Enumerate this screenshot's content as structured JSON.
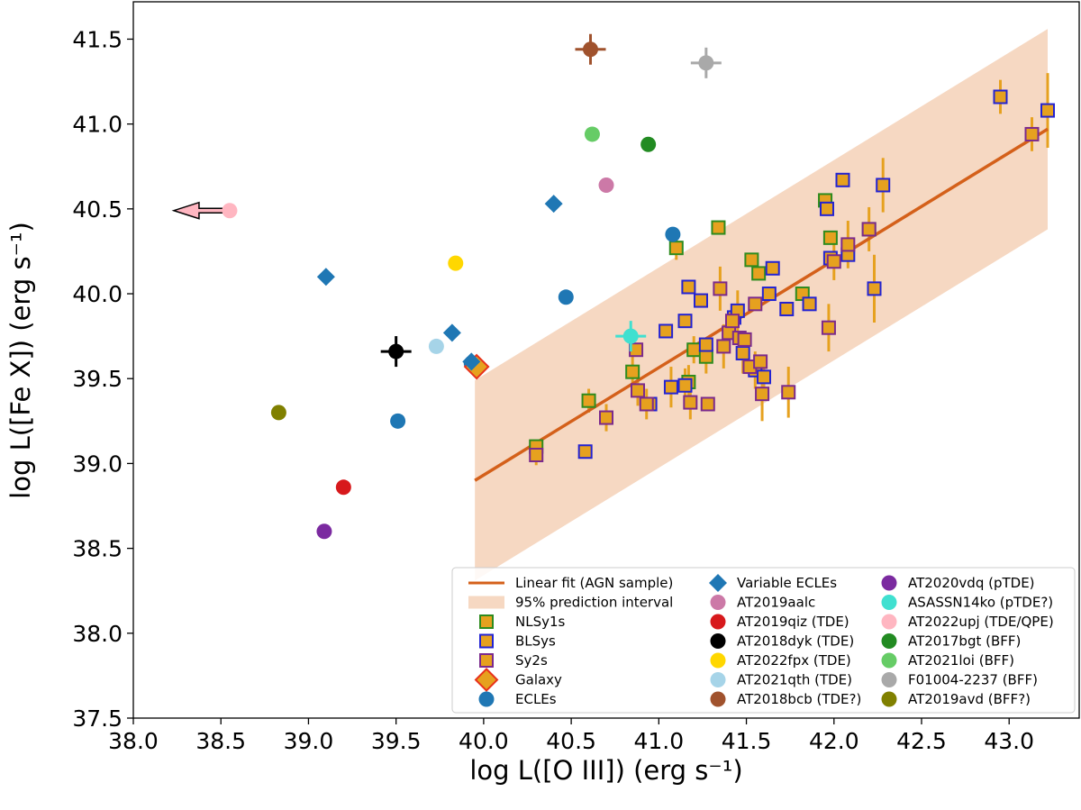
{
  "chart_data": {
    "type": "scatter",
    "xlabel": "log L([O III]) (erg s⁻¹)",
    "ylabel": "log L([Fe X]) (erg s⁻¹)",
    "xlim": [
      38.0,
      43.4
    ],
    "ylim": [
      37.5,
      41.72
    ],
    "x_ticks": [
      "38.0",
      "38.5",
      "39.0",
      "39.5",
      "40.0",
      "40.5",
      "41.0",
      "41.5",
      "42.0",
      "42.5",
      "43.0"
    ],
    "y_ticks": [
      "37.5",
      "38.0",
      "38.5",
      "39.0",
      "39.5",
      "40.0",
      "40.5",
      "41.0",
      "41.5"
    ],
    "grid": false,
    "legend_position": "lower-right",
    "colors": {
      "fit_line": "#d4601a",
      "band": "#f6d8c2",
      "sample_fill": "#e6a11f",
      "nlsy1_edge": "#2e8b1e",
      "blsy_edge": "#2323d2",
      "sy2_edge": "#7b2a8c",
      "galaxy_edge": "#e8321c",
      "ecle": "#1f77b4",
      "errorbar": "#e6a11f"
    },
    "fit": {
      "label": "Linear fit (AGN sample)",
      "x": [
        39.95,
        43.22
      ],
      "y": [
        38.9,
        40.97
      ],
      "band_label": "95% prediction interval",
      "band_lower": [
        38.31,
        40.38
      ],
      "band_upper": [
        39.49,
        41.56
      ]
    },
    "samples": [
      {
        "name": "NLSy1s",
        "marker": "square",
        "edge": "#2e8b1e",
        "points": [
          [
            40.3,
            39.1
          ],
          [
            40.6,
            39.37
          ],
          [
            40.85,
            39.54
          ],
          [
            41.1,
            40.27
          ],
          [
            41.17,
            39.48
          ],
          [
            41.2,
            39.67
          ],
          [
            41.27,
            39.63
          ],
          [
            41.34,
            40.39
          ],
          [
            41.53,
            40.2
          ],
          [
            41.57,
            40.12
          ],
          [
            41.82,
            40.0
          ],
          [
            41.95,
            40.55
          ],
          [
            41.98,
            40.33
          ],
          [
            42.2,
            40.38
          ]
        ]
      },
      {
        "name": "BLSys",
        "marker": "square",
        "edge": "#2323d2",
        "points": [
          [
            40.58,
            39.07
          ],
          [
            40.95,
            39.35
          ],
          [
            41.04,
            39.78
          ],
          [
            41.07,
            39.45
          ],
          [
            41.15,
            39.84
          ],
          [
            41.15,
            39.46
          ],
          [
            41.17,
            40.04
          ],
          [
            41.24,
            39.96
          ],
          [
            41.27,
            39.7
          ],
          [
            41.43,
            39.86
          ],
          [
            41.45,
            39.9
          ],
          [
            41.48,
            39.65
          ],
          [
            41.55,
            39.55
          ],
          [
            41.6,
            39.51
          ],
          [
            41.63,
            40.0
          ],
          [
            41.65,
            40.15
          ],
          [
            41.73,
            39.91
          ],
          [
            41.86,
            39.94
          ],
          [
            41.96,
            40.5
          ],
          [
            41.98,
            40.21
          ],
          [
            42.05,
            40.67
          ],
          [
            42.08,
            40.23
          ],
          [
            42.23,
            40.03
          ],
          [
            42.28,
            40.64
          ],
          [
            42.95,
            41.16
          ],
          [
            43.22,
            41.08
          ]
        ]
      },
      {
        "name": "Sy2s",
        "marker": "square",
        "edge": "#7b2a8c",
        "points": [
          [
            40.3,
            39.05
          ],
          [
            40.7,
            39.27
          ],
          [
            40.87,
            39.67
          ],
          [
            40.88,
            39.43
          ],
          [
            40.93,
            39.35
          ],
          [
            41.18,
            39.36
          ],
          [
            41.28,
            39.35
          ],
          [
            41.35,
            40.03
          ],
          [
            41.37,
            39.69
          ],
          [
            41.4,
            39.77
          ],
          [
            41.42,
            39.84
          ],
          [
            41.46,
            39.74
          ],
          [
            41.49,
            39.73
          ],
          [
            41.52,
            39.57
          ],
          [
            41.55,
            39.94
          ],
          [
            41.58,
            39.6
          ],
          [
            41.59,
            39.41
          ],
          [
            41.74,
            39.42
          ],
          [
            41.97,
            39.8
          ],
          [
            42.0,
            40.19
          ],
          [
            42.08,
            40.29
          ],
          [
            42.2,
            40.38
          ],
          [
            43.13,
            40.94
          ]
        ]
      }
    ],
    "error_bars": [
      [
        40.3,
        38.99,
        39.11
      ],
      [
        40.6,
        39.3,
        39.44
      ],
      [
        40.7,
        39.19,
        39.35
      ],
      [
        40.85,
        39.45,
        39.63
      ],
      [
        40.88,
        39.34,
        39.52
      ],
      [
        40.93,
        39.26,
        39.44
      ],
      [
        41.07,
        39.33,
        39.57
      ],
      [
        41.1,
        40.2,
        40.34
      ],
      [
        41.15,
        39.36,
        39.56
      ],
      [
        41.17,
        39.38,
        39.58
      ],
      [
        41.18,
        39.26,
        39.46
      ],
      [
        41.2,
        39.59,
        39.75
      ],
      [
        41.27,
        39.53,
        39.73
      ],
      [
        41.35,
        39.9,
        40.16
      ],
      [
        41.37,
        39.56,
        39.82
      ],
      [
        41.45,
        39.78,
        40.02
      ],
      [
        41.48,
        39.53,
        39.77
      ],
      [
        41.55,
        39.44,
        39.66
      ],
      [
        41.59,
        39.25,
        39.57
      ],
      [
        41.6,
        39.4,
        39.62
      ],
      [
        41.74,
        39.27,
        39.57
      ],
      [
        41.97,
        39.66,
        39.94
      ],
      [
        42.0,
        40.08,
        40.3
      ],
      [
        42.08,
        40.15,
        40.43
      ],
      [
        42.2,
        40.25,
        40.51
      ],
      [
        42.23,
        39.83,
        40.23
      ],
      [
        42.28,
        40.48,
        40.8
      ],
      [
        42.95,
        41.06,
        41.26
      ],
      [
        43.13,
        40.84,
        41.04
      ],
      [
        43.22,
        40.86,
        41.3
      ]
    ],
    "galaxy": {
      "name": "Galaxy",
      "x": 39.96,
      "y": 39.57
    },
    "ecles": {
      "name": "ECLEs",
      "color": "#1f77b4",
      "points": [
        [
          39.51,
          39.25
        ],
        [
          40.47,
          39.98
        ],
        [
          41.08,
          40.35
        ],
        [
          39.93,
          39.59
        ]
      ]
    },
    "variable_ecles": {
      "name": "Variable ECLEs",
      "color": "#1f77b4",
      "points": [
        [
          39.1,
          40.1
        ],
        [
          39.82,
          39.77
        ],
        [
          40.4,
          40.53
        ],
        [
          39.93,
          39.6
        ]
      ]
    },
    "objects": [
      {
        "name": "AT2019aalc",
        "color": "#cc79a7",
        "x": 40.7,
        "y": 40.64
      },
      {
        "name": "AT2019qiz (TDE)",
        "color": "#d7191c",
        "x": 39.2,
        "y": 38.86
      },
      {
        "name": "AT2018dyk (TDE)",
        "color": "#000000",
        "x": 39.5,
        "y": 39.66,
        "errorbar": true
      },
      {
        "name": "AT2022fpx (TDE)",
        "color": "#ffd700",
        "x": 39.84,
        "y": 40.18
      },
      {
        "name": "AT2021qth (TDE)",
        "color": "#a6d4e8",
        "x": 39.73,
        "y": 39.69
      },
      {
        "name": "AT2018bcb (TDE?)",
        "color": "#a0522d",
        "x": 40.61,
        "y": 41.44,
        "errorbar": true
      },
      {
        "name": "AT2020vdq (pTDE)",
        "color": "#7b2aa0",
        "x": 39.09,
        "y": 38.6
      },
      {
        "name": "ASASSN14ko (pTDE?)",
        "color": "#40e0d0",
        "x": 40.84,
        "y": 39.75,
        "errorbar": true
      },
      {
        "name": "AT2022upj (TDE/QPE)",
        "color": "#ffb6c1",
        "x": 38.55,
        "y": 40.49,
        "upper_limit_arrow": true
      },
      {
        "name": "AT2017bgt (BFF)",
        "color": "#228b22",
        "x": 40.94,
        "y": 40.88
      },
      {
        "name": "AT2021loi (BFF)",
        "color": "#66cc66",
        "x": 40.62,
        "y": 40.94
      },
      {
        "name": "F01004-2237 (BFF)",
        "color": "#a9a9a9",
        "x": 41.27,
        "y": 41.36,
        "errorbar": true
      },
      {
        "name": "AT2019avd (BFF?)",
        "color": "#808000",
        "x": 38.83,
        "y": 39.3
      }
    ],
    "legend": {
      "col1": [
        "Linear fit (AGN sample)",
        "95% prediction interval",
        "NLSy1s",
        "BLSys",
        "Sy2s",
        "Galaxy",
        "ECLEs"
      ],
      "col2": [
        "Variable ECLEs",
        "AT2019aalc",
        "AT2019qiz (TDE)",
        "AT2018dyk (TDE)",
        "AT2022fpx (TDE)",
        "AT2021qth (TDE)",
        "AT2018bcb (TDE?)"
      ],
      "col3": [
        "AT2020vdq (pTDE)",
        "ASASSN14ko (pTDE?)",
        "AT2022upj (TDE/QPE)",
        "AT2017bgt (BFF)",
        "AT2021loi (BFF)",
        "F01004-2237 (BFF)",
        "AT2019avd (BFF?)"
      ]
    }
  }
}
